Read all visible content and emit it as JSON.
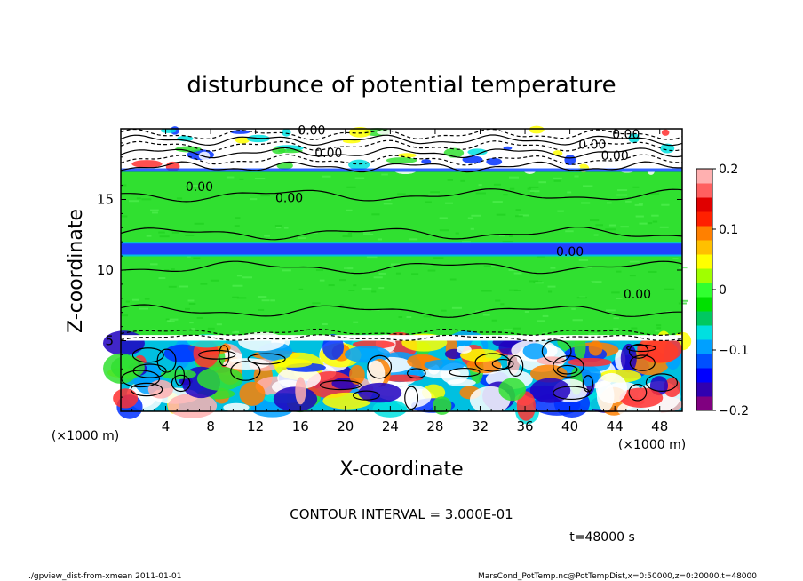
{
  "chart_data": {
    "type": "heatmap",
    "title": "disturbunce of potential temperature",
    "xlabel": "X-coordinate",
    "ylabel": "Z-coordinate",
    "x_unit": "(×1000 m)",
    "z_unit": "(×1000 m)",
    "xlim": [
      0,
      50
    ],
    "ylim": [
      0,
      20
    ],
    "x_ticks": [
      "4",
      "8",
      "12",
      "16",
      "20",
      "24",
      "28",
      "32",
      "36",
      "40",
      "44",
      "48"
    ],
    "x_tick_values": [
      4,
      8,
      12,
      16,
      20,
      24,
      28,
      32,
      36,
      40,
      44,
      48
    ],
    "y_ticks": [
      "5",
      "10",
      "15"
    ],
    "y_tick_values": [
      5,
      10,
      15
    ],
    "colorbar": {
      "ticks": [
        "0.2",
        "0.1",
        "0",
        "−0.1",
        "−0.2"
      ],
      "tick_values": [
        0.2,
        0.1,
        0,
        -0.1,
        -0.2
      ],
      "range": [
        -0.2,
        0.2
      ],
      "colors": [
        "#800080",
        "#3000b0",
        "#0000ff",
        "#0050ff",
        "#00a0ff",
        "#00e0e0",
        "#00c860",
        "#00e000",
        "#30ff30",
        "#a0ff00",
        "#ffff00",
        "#ffc000",
        "#ff8000",
        "#ff2000",
        "#e00000",
        "#ff6060",
        "#ffb0b0"
      ]
    },
    "layers": [
      {
        "z": [
          0,
          5
        ],
        "description": "strong alternating patches",
        "dominant": "mixed"
      },
      {
        "z": [
          5,
          11
        ],
        "value": 0
      },
      {
        "z": [
          11.2,
          11.8
        ],
        "value": -0.15
      },
      {
        "z": [
          12,
          17
        ],
        "value": 0
      },
      {
        "z": [
          17,
          20
        ],
        "description": "contour-dense layer",
        "dominant": "mixed"
      }
    ],
    "contour_labels": [
      "0.00",
      "0.00",
      "0.00",
      "0.00",
      "0.00",
      "0.00",
      "0.00",
      "0.00",
      "0.00"
    ],
    "contour_interval": "CONTOUR INTERVAL = 3.000E-01",
    "time": "t=48000 s"
  },
  "footer": {
    "left": "./gpview_dist-from-xmean  2011-01-01",
    "right": "MarsCond_PotTemp.nc@PotTempDist,x=0:50000,z=0:20000,t=48000"
  }
}
